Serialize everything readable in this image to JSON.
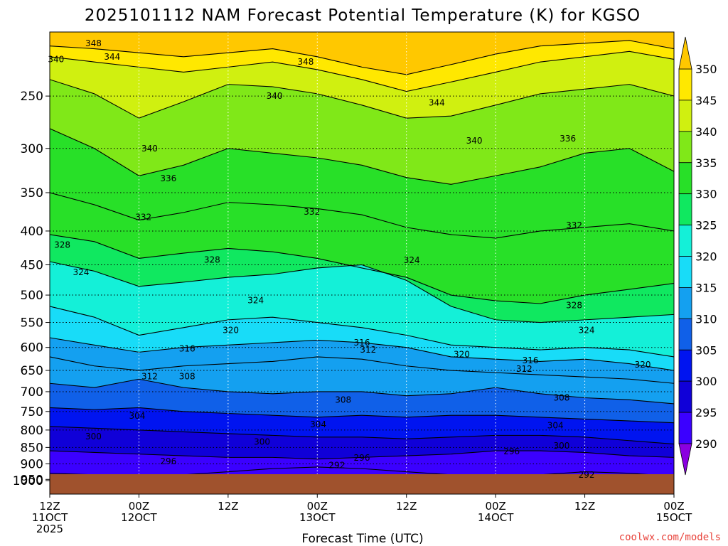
{
  "chart_data": {
    "type": "contour",
    "title": "2025101112 NAM Forecast Potential Temperature (K) for KGSO",
    "xlabel": "Forecast Time (UTC)",
    "ylabel": "",
    "y_axis": {
      "scale": "log-pressure",
      "units": "hPa",
      "range": [
        1000,
        200
      ],
      "reversed": true,
      "ticks": [
        250,
        300,
        350,
        400,
        450,
        500,
        550,
        600,
        650,
        700,
        750,
        800,
        850,
        900,
        950,
        1000
      ]
    },
    "x_axis": {
      "range": [
        "2025-10-11 12Z",
        "2025-10-15 00Z"
      ],
      "ticks": [
        {
          "line1": "12Z",
          "line2": "11OCT",
          "line3": "2025"
        },
        {
          "line1": "00Z",
          "line2": "12OCT",
          "line3": ""
        },
        {
          "line1": "12Z",
          "line2": "",
          "line3": ""
        },
        {
          "line1": "00Z",
          "line2": "13OCT",
          "line3": ""
        },
        {
          "line1": "12Z",
          "line2": "",
          "line3": ""
        },
        {
          "line1": "00Z",
          "line2": "14OCT",
          "line3": ""
        },
        {
          "line1": "12Z",
          "line2": "",
          "line3": ""
        },
        {
          "line1": "00Z",
          "line2": "15OCT",
          "line3": ""
        }
      ]
    },
    "grid": true,
    "colorbar": {
      "levels": [
        290,
        295,
        300,
        305,
        310,
        315,
        320,
        325,
        330,
        335,
        340,
        345,
        350
      ],
      "colors": [
        "#8a00e0",
        "#3b00ff",
        "#1000d8",
        "#0014f0",
        "#1060e8",
        "#14a0f0",
        "#18dcf8",
        "#14f0d8",
        "#10e860",
        "#28e028",
        "#80e818",
        "#d0f010",
        "#ffe800",
        "#ffc800"
      ]
    },
    "isotherms": [
      {
        "theta": 348,
        "p": [
          210,
          212,
          215,
          218,
          215,
          212,
          218,
          226,
          232,
          224,
          216,
          210,
          208,
          206,
          212
        ]
      },
      {
        "theta": 344,
        "p": [
          218,
          222,
          226,
          230,
          226,
          222,
          228,
          236,
          246,
          238,
          230,
          222,
          218,
          214,
          220
        ]
      },
      {
        "theta": 340,
        "p": [
          236,
          248,
          270,
          255,
          240,
          242,
          248,
          258,
          270,
          268,
          258,
          248,
          244,
          240,
          250
        ]
      },
      {
        "theta": 336,
        "p": [
          280,
          300,
          330,
          318,
          300,
          305,
          310,
          318,
          332,
          340,
          330,
          320,
          305,
          300,
          325
        ]
      },
      {
        "theta": 332,
        "p": [
          350,
          365,
          385,
          375,
          362,
          365,
          370,
          378,
          395,
          405,
          410,
          400,
          395,
          390,
          400
        ]
      },
      {
        "theta": 328,
        "p": [
          405,
          415,
          440,
          432,
          425,
          430,
          440,
          455,
          470,
          500,
          510,
          515,
          500,
          490,
          480
        ]
      },
      {
        "theta": 324,
        "p": [
          445,
          460,
          485,
          478,
          470,
          465,
          455,
          450,
          475,
          520,
          545,
          550,
          545,
          540,
          535
        ]
      },
      {
        "theta": 320,
        "p": [
          520,
          540,
          575,
          560,
          545,
          540,
          550,
          560,
          575,
          595,
          600,
          605,
          600,
          605,
          620
        ]
      },
      {
        "theta": 316,
        "p": [
          580,
          595,
          610,
          600,
          595,
          590,
          585,
          590,
          600,
          620,
          625,
          630,
          625,
          635,
          650
        ]
      },
      {
        "theta": 312,
        "p": [
          620,
          640,
          650,
          640,
          635,
          630,
          620,
          625,
          640,
          650,
          655,
          660,
          665,
          670,
          680
        ]
      },
      {
        "theta": 308,
        "p": [
          680,
          690,
          670,
          690,
          700,
          705,
          700,
          700,
          710,
          705,
          690,
          705,
          715,
          720,
          730
        ]
      },
      {
        "theta": 304,
        "p": [
          740,
          745,
          740,
          750,
          755,
          760,
          765,
          760,
          765,
          760,
          760,
          765,
          770,
          775,
          780
        ]
      },
      {
        "theta": 300,
        "p": [
          790,
          795,
          800,
          805,
          810,
          815,
          820,
          820,
          825,
          820,
          815,
          815,
          820,
          830,
          840
        ]
      },
      {
        "theta": 296,
        "p": [
          860,
          865,
          870,
          875,
          880,
          880,
          885,
          880,
          875,
          870,
          860,
          860,
          865,
          875,
          880
        ]
      },
      {
        "theta": 292,
        "p": [
          930,
          935,
          940,
          935,
          925,
          915,
          910,
          915,
          925,
          935,
          940,
          935,
          925,
          930,
          940
        ]
      }
    ],
    "contour_labels": [
      {
        "text": "348",
        "x": 0.07,
        "p": 208
      },
      {
        "text": "344",
        "x": 0.1,
        "p": 218
      },
      {
        "text": "340",
        "x": 0.01,
        "p": 220
      },
      {
        "text": "348",
        "x": 0.41,
        "p": 222
      },
      {
        "text": "340",
        "x": 0.36,
        "p": 250
      },
      {
        "text": "344",
        "x": 0.62,
        "p": 256
      },
      {
        "text": "340",
        "x": 0.16,
        "p": 300
      },
      {
        "text": "336",
        "x": 0.19,
        "p": 333
      },
      {
        "text": "340",
        "x": 0.68,
        "p": 292
      },
      {
        "text": "336",
        "x": 0.83,
        "p": 290
      },
      {
        "text": "332",
        "x": 0.15,
        "p": 381
      },
      {
        "text": "332",
        "x": 0.42,
        "p": 374
      },
      {
        "text": "332",
        "x": 0.84,
        "p": 392
      },
      {
        "text": "328",
        "x": 0.02,
        "p": 420
      },
      {
        "text": "328",
        "x": 0.26,
        "p": 442
      },
      {
        "text": "324",
        "x": 0.05,
        "p": 462
      },
      {
        "text": "324",
        "x": 0.33,
        "p": 509
      },
      {
        "text": "324",
        "x": 0.58,
        "p": 443
      },
      {
        "text": "328",
        "x": 0.84,
        "p": 518
      },
      {
        "text": "324",
        "x": 0.86,
        "p": 565
      },
      {
        "text": "320",
        "x": 0.29,
        "p": 565
      },
      {
        "text": "316",
        "x": 0.22,
        "p": 603
      },
      {
        "text": "316",
        "x": 0.5,
        "p": 590
      },
      {
        "text": "312",
        "x": 0.51,
        "p": 605
      },
      {
        "text": "320",
        "x": 0.66,
        "p": 615
      },
      {
        "text": "316",
        "x": 0.77,
        "p": 628
      },
      {
        "text": "312",
        "x": 0.76,
        "p": 647
      },
      {
        "text": "320",
        "x": 0.95,
        "p": 637
      },
      {
        "text": "312",
        "x": 0.16,
        "p": 664
      },
      {
        "text": "308",
        "x": 0.22,
        "p": 664
      },
      {
        "text": "308",
        "x": 0.47,
        "p": 720
      },
      {
        "text": "308",
        "x": 0.82,
        "p": 715
      },
      {
        "text": "304",
        "x": 0.14,
        "p": 762
      },
      {
        "text": "304",
        "x": 0.43,
        "p": 785
      },
      {
        "text": "304",
        "x": 0.81,
        "p": 787
      },
      {
        "text": "300",
        "x": 0.07,
        "p": 818
      },
      {
        "text": "300",
        "x": 0.34,
        "p": 834
      },
      {
        "text": "300",
        "x": 0.82,
        "p": 845
      },
      {
        "text": "296",
        "x": 0.19,
        "p": 892
      },
      {
        "text": "296",
        "x": 0.5,
        "p": 881
      },
      {
        "text": "296",
        "x": 0.74,
        "p": 862
      },
      {
        "text": "292",
        "x": 0.46,
        "p": 905
      },
      {
        "text": "292",
        "x": 0.86,
        "p": 935
      }
    ]
  },
  "credit": "coolwx.com/models"
}
